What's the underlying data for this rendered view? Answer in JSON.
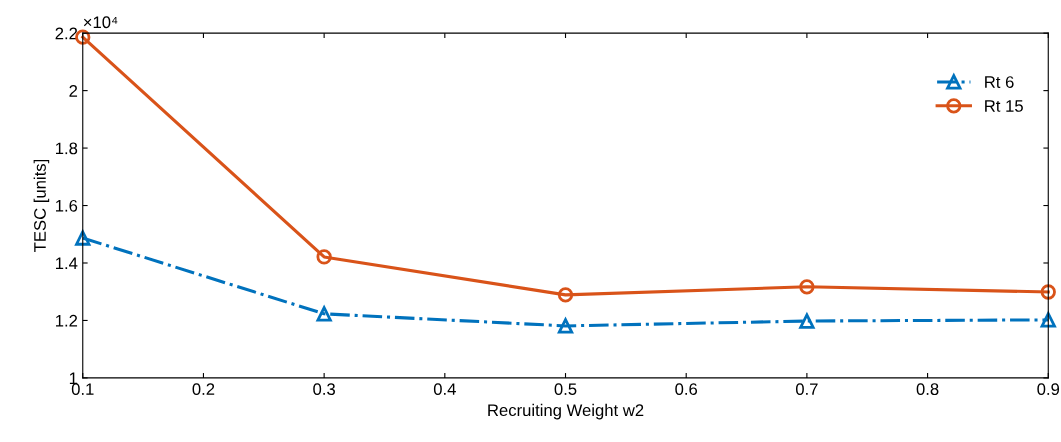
{
  "chart_data": {
    "type": "line",
    "xlabel": "Recruiting Weight w2",
    "ylabel": "TESC [units]",
    "x": [
      0.1,
      0.3,
      0.5,
      0.7,
      0.9
    ],
    "series": [
      {
        "name": "Rt 6",
        "color": "#0072bd",
        "marker": "triangle",
        "line_style": "dashdot",
        "values": [
          1.487,
          1.223,
          1.181,
          1.198,
          1.202
        ]
      },
      {
        "name": "Rt 15",
        "color": "#d95319",
        "marker": "circle",
        "line_style": "solid",
        "values": [
          2.186,
          1.421,
          1.289,
          1.317,
          1.299
        ]
      }
    ],
    "xlim": [
      0.1,
      0.9
    ],
    "xticks": [
      0.1,
      0.2,
      0.3,
      0.4,
      0.5,
      0.6,
      0.7,
      0.8,
      0.9
    ],
    "ylim": [
      1,
      2.2
    ],
    "yticks": [
      1,
      1.2,
      1.4,
      1.6,
      1.8,
      2,
      2.2
    ],
    "annotations": [
      "×10⁴"
    ],
    "legend": "top right",
    "grid": false
  }
}
